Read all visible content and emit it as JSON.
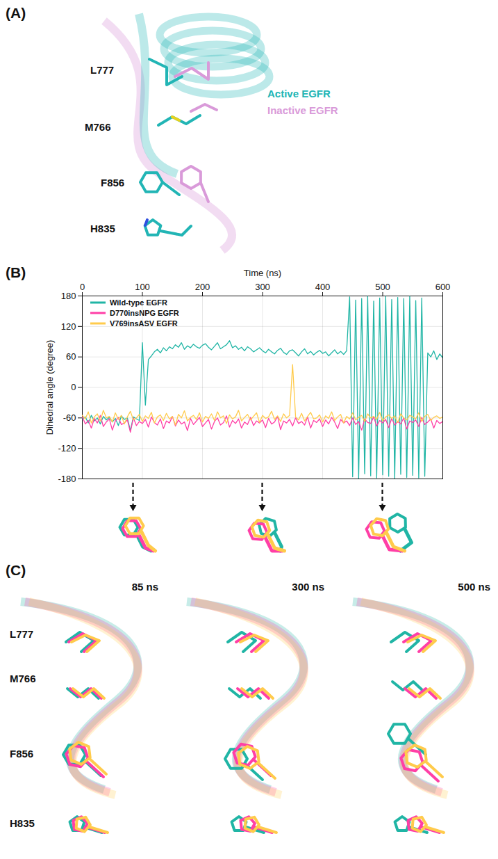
{
  "panel_labels": [
    "(A)",
    "(B)",
    "(C)"
  ],
  "structure_a": {
    "residues": [
      "L777",
      "M766",
      "F856",
      "H835"
    ],
    "legend": [
      {
        "name": "Active EGFR",
        "color": "#22b5b5"
      },
      {
        "name": "Inactive EGFR",
        "color": "#d99ad9"
      }
    ]
  },
  "chart_data": {
    "type": "line",
    "x_label": "Time (ns)",
    "y_label": "Dihedral angle (degree)",
    "xlim": [
      0,
      600
    ],
    "xticks": [
      0,
      100,
      200,
      300,
      400,
      500,
      600
    ],
    "ylim": [
      -180,
      180
    ],
    "yticks": [
      -180,
      -120,
      -60,
      0,
      60,
      120,
      180
    ],
    "grid": true,
    "legend": "top-left",
    "marked_times": [
      85,
      300,
      500
    ],
    "x": [
      0,
      5,
      10,
      15,
      20,
      25,
      30,
      35,
      40,
      45,
      50,
      55,
      60,
      65,
      70,
      75,
      80,
      85,
      90,
      95,
      100,
      105,
      110,
      115,
      120,
      125,
      130,
      135,
      140,
      145,
      150,
      155,
      160,
      165,
      170,
      175,
      180,
      185,
      190,
      195,
      200,
      205,
      210,
      215,
      220,
      225,
      230,
      235,
      240,
      245,
      250,
      255,
      260,
      265,
      270,
      275,
      280,
      285,
      290,
      295,
      300,
      305,
      310,
      315,
      320,
      325,
      330,
      335,
      340,
      345,
      350,
      355,
      360,
      365,
      370,
      375,
      380,
      385,
      390,
      395,
      400,
      405,
      410,
      415,
      420,
      425,
      430,
      435,
      440,
      445,
      450,
      455,
      460,
      465,
      470,
      475,
      480,
      485,
      490,
      495,
      500,
      505,
      510,
      515,
      520,
      525,
      530,
      535,
      540,
      545,
      550,
      555,
      560,
      565,
      570,
      575,
      580,
      585,
      590,
      595,
      600
    ],
    "series": [
      {
        "name": "Wild-type EGFR",
        "color": "#20b5a5",
        "values": [
          -62,
          -58,
          -70,
          -55,
          -66,
          -60,
          -72,
          -57,
          -64,
          -59,
          -68,
          -61,
          -75,
          -56,
          -63,
          -60,
          -85,
          -58,
          -62,
          -65,
          88,
          -35,
          55,
          62,
          70,
          75,
          68,
          78,
          72,
          80,
          76,
          84,
          79,
          88,
          75,
          82,
          78,
          85,
          80,
          77,
          83,
          86,
          79,
          74,
          81,
          88,
          76,
          80,
          84,
          92,
          78,
          82,
          75,
          79,
          72,
          80,
          76,
          70,
          74,
          78,
          72,
          68,
          75,
          70,
          66,
          73,
          77,
          69,
          65,
          72,
          74,
          68,
          62,
          70,
          76,
          66,
          71,
          64,
          69,
          73,
          67,
          70,
          62,
          68,
          74,
          66,
          71,
          65,
          72,
          178,
          -176,
          172,
          -179,
          175,
          -170,
          179,
          -174,
          170,
          -178,
          176,
          -172,
          179,
          -175,
          173,
          -179,
          177,
          -171,
          175,
          -177,
          179,
          -173,
          171,
          -178,
          176,
          -175,
          68,
          60,
          72,
          55,
          66,
          58
        ]
      },
      {
        "name": "D770insNPG EGFR",
        "color": "#ff3fa6",
        "values": [
          -58,
          -72,
          -65,
          -80,
          -61,
          -70,
          -55,
          -77,
          -68,
          -62,
          -84,
          -66,
          -59,
          -73,
          -70,
          -64,
          -88,
          -60,
          -75,
          -67,
          -71,
          -63,
          -78,
          -58,
          -69,
          -74,
          -62,
          -81,
          -66,
          -70,
          -57,
          -76,
          -64,
          -72,
          -68,
          -85,
          -61,
          -73,
          -66,
          -59,
          -77,
          -70,
          -63,
          -82,
          -67,
          -60,
          -74,
          -69,
          -56,
          -78,
          -65,
          -71,
          -62,
          -80,
          -68,
          -73,
          -59,
          -75,
          -66,
          -70,
          -64,
          -79,
          -61,
          -72,
          -68,
          -57,
          -83,
          -66,
          -70,
          -63,
          -76,
          -60,
          -71,
          -67,
          -74,
          -58,
          -80,
          -65,
          -69,
          -62,
          -77,
          -64,
          -72,
          -59,
          -68,
          -81,
          -63,
          -70,
          -66,
          -75,
          -60,
          -73,
          -67,
          -84,
          -62,
          -69,
          -71,
          -58,
          -76,
          -65,
          -70,
          -63,
          -79,
          -61,
          -74,
          -67,
          -72,
          -60,
          -82,
          -66,
          -69,
          -64,
          -77,
          -59,
          -73,
          -68,
          -62,
          -80,
          -65,
          -71,
          -67
        ]
      },
      {
        "name": "V769insASV EGFR",
        "color": "#ffcb4c",
        "values": [
          -55,
          -62,
          -48,
          -70,
          -58,
          -52,
          -66,
          -45,
          -60,
          -57,
          -68,
          -50,
          -63,
          -55,
          -72,
          -58,
          -47,
          -64,
          -60,
          -53,
          -67,
          -56,
          -61,
          -49,
          -70,
          -58,
          -54,
          -65,
          -51,
          -62,
          -57,
          -74,
          -53,
          -60,
          -46,
          -66,
          -59,
          -55,
          -63,
          -50,
          -68,
          -57,
          -61,
          -52,
          -65,
          -48,
          -60,
          -56,
          -71,
          -54,
          -62,
          -58,
          -45,
          -66,
          -59,
          -53,
          -64,
          -57,
          -50,
          -69,
          -55,
          -61,
          -58,
          -47,
          -63,
          -56,
          -67,
          -52,
          -60,
          -55,
          45,
          -58,
          -64,
          -51,
          -66,
          -57,
          -49,
          -62,
          -60,
          -54,
          -68,
          -56,
          -61,
          -48,
          -65,
          -58,
          -53,
          -70,
          -57,
          -62,
          -50,
          -64,
          -59,
          -55,
          -67,
          -52,
          -60,
          -57,
          -63,
          -49,
          -66,
          -58,
          -54,
          -61,
          -56,
          -69,
          -52,
          -60,
          -64,
          -55,
          -58,
          -62,
          -50,
          -67,
          -57,
          -53,
          -65,
          -59,
          -56,
          -61,
          -58
        ]
      }
    ]
  },
  "structure_c": {
    "times": [
      "85 ns",
      "300 ns",
      "500 ns"
    ],
    "residues": [
      "L777",
      "M766",
      "F856",
      "H835"
    ]
  }
}
